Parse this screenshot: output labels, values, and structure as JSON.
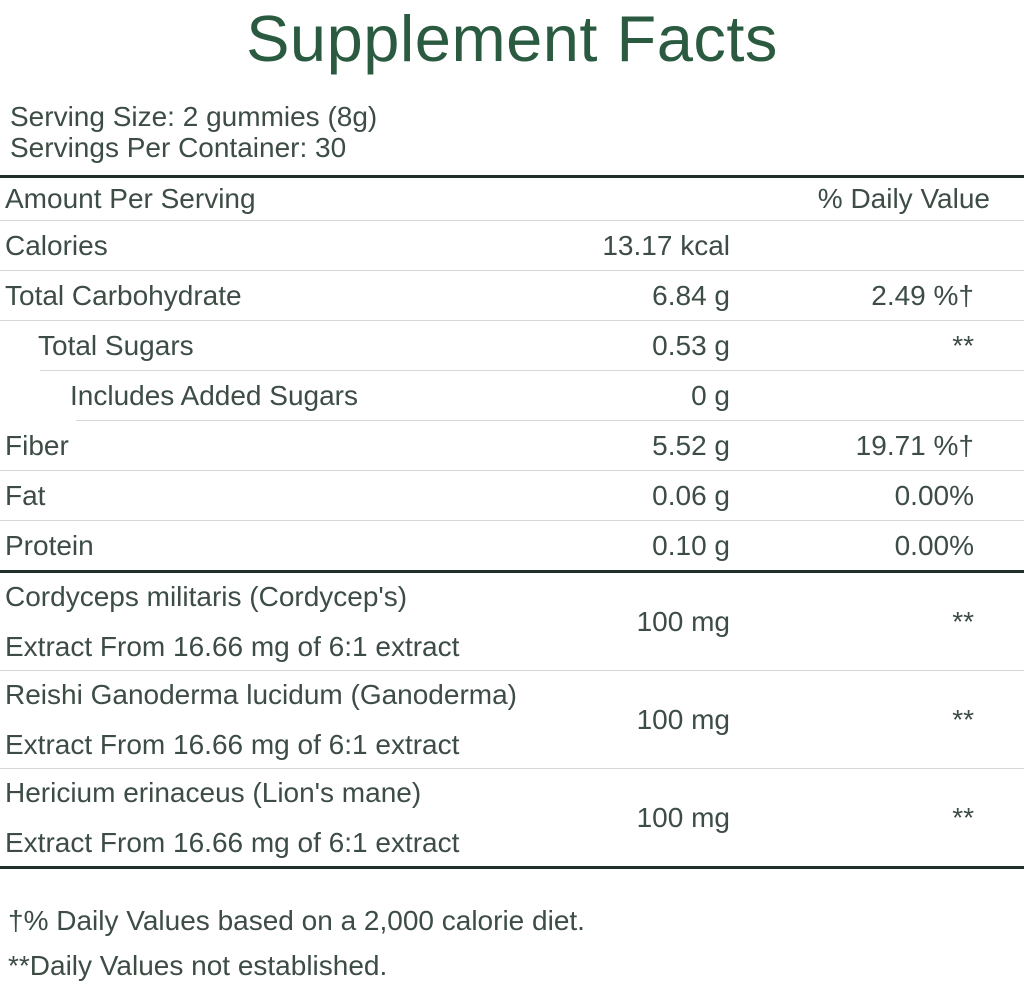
{
  "label": {
    "title": "Supplement Facts",
    "serving": {
      "serving_size": "Serving Size: 2 gummies (8g)",
      "servings_per_container": "Servings Per Container: 30"
    },
    "header": {
      "amount_per_serving": "Amount Per Serving",
      "daily_value": "% Daily Value"
    },
    "rows": [
      {
        "name": "Calories",
        "amount": "13.17 kcal",
        "dv": ""
      },
      {
        "name": "Total Carbohydrate",
        "amount": "6.84 g",
        "dv": "2.49 %†"
      },
      {
        "name": "Total Sugars",
        "amount": "0.53 g",
        "dv": "**"
      },
      {
        "name": "Includes Added Sugars",
        "amount": "0 g",
        "dv": ""
      },
      {
        "name": "Fiber",
        "amount": "5.52 g",
        "dv": "19.71 %†"
      },
      {
        "name": "Fat",
        "amount": "0.06 g",
        "dv": "0.00%"
      },
      {
        "name": "Protein",
        "amount": "0.10 g",
        "dv": "0.00%"
      }
    ],
    "ingredients": [
      {
        "name_line1": "Cordyceps militaris (Cordycep's)",
        "name_line2": "Extract From 16.66 mg of 6:1 extract",
        "amount": "100 mg",
        "dv": "**"
      },
      {
        "name_line1": "Reishi Ganoderma lucidum (Ganoderma)",
        "name_line2": "Extract From 16.66 mg of 6:1 extract",
        "amount": "100 mg",
        "dv": "**"
      },
      {
        "name_line1": "Hericium erinaceus (Lion's mane)",
        "name_line2": "Extract From 16.66 mg of 6:1 extract",
        "amount": "100 mg",
        "dv": "**"
      }
    ],
    "footnotes": [
      "†% Daily Values based on a 2,000 calorie diet.",
      "**Daily Values not established."
    ],
    "colors": {
      "title_green": "#2a5b40",
      "body_text": "#3d4d45",
      "divider_light": "#d7d7d7",
      "divider_dark": "#203028"
    }
  }
}
